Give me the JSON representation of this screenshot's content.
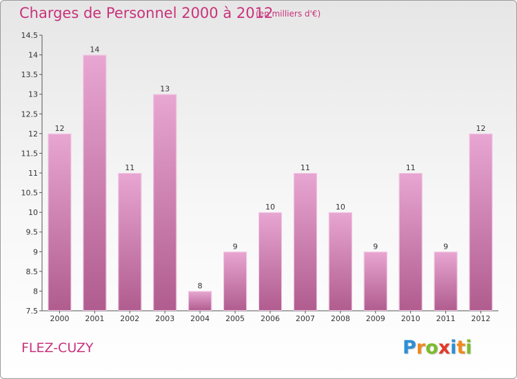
{
  "header": {
    "title": "Charges de Personnel 2000 à 2012",
    "subtitle": "(en milliers d'€)"
  },
  "footer": {
    "commune": "FLEZ-CUZY",
    "brand": "Proxiti",
    "brand_letters": [
      {
        "ch": "P",
        "color": "#2a8fd8"
      },
      {
        "ch": "r",
        "color": "#f08a1c"
      },
      {
        "ch": "o",
        "color": "#7cbd2a"
      },
      {
        "ch": "x",
        "color": "#e23a2a"
      },
      {
        "ch": "i",
        "color": "#2a8fd8"
      },
      {
        "ch": "t",
        "color": "#f08a1c"
      },
      {
        "ch": "i",
        "color": "#7cbd2a"
      }
    ]
  },
  "colors": {
    "title": "#c8327a",
    "bar_top": "#e8a6d2",
    "bar_bottom": "#b05c8e",
    "bar_edge": "#f3c9e4"
  },
  "chart_data": {
    "type": "bar",
    "title": "Charges de Personnel 2000 à 2012",
    "subtitle": "(en milliers d'€)",
    "categories": [
      "2000",
      "2001",
      "2002",
      "2003",
      "2004",
      "2005",
      "2006",
      "2007",
      "2008",
      "2009",
      "2010",
      "2011",
      "2012"
    ],
    "values": [
      12,
      14,
      11,
      13,
      8,
      9,
      10,
      11,
      10,
      9,
      11,
      9,
      12
    ],
    "ylim": [
      7.5,
      14.5
    ],
    "yticks": [
      "7.5",
      "8",
      "8.5",
      "9",
      "9.5",
      "10",
      "10.5",
      "11",
      "11.5",
      "12",
      "12.5",
      "13",
      "13.5",
      "14",
      "14.5"
    ],
    "xlabel": "",
    "ylabel": "",
    "grid": false,
    "data_labels": true
  }
}
